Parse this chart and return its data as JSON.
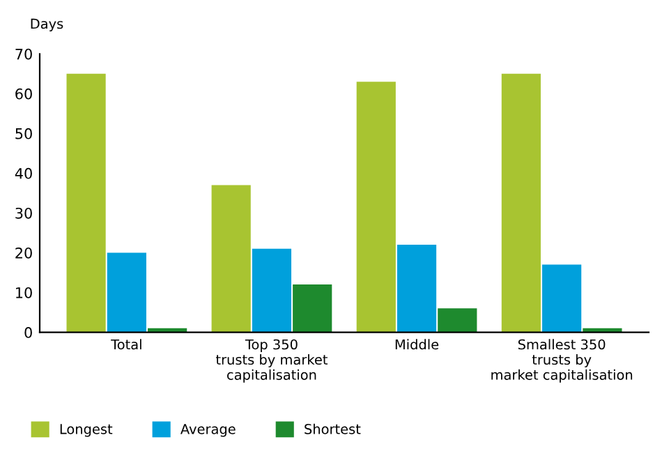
{
  "chart_data": {
    "type": "bar",
    "ylabel": "Days",
    "categories": [
      "Total",
      "Top 350\ntrusts by market\ncapitalisation",
      "Middle",
      "Smallest 350\ntrusts by\nmarket capitalisation"
    ],
    "series": [
      {
        "name": "Longest",
        "color": "#a8c431",
        "values": [
          65,
          37,
          63,
          65
        ]
      },
      {
        "name": "Average",
        "color": "#00a0dc",
        "values": [
          20,
          21,
          22,
          17
        ]
      },
      {
        "name": "Shortest",
        "color": "#1e8a2e",
        "values": [
          1,
          12,
          6,
          1
        ]
      }
    ],
    "ylim": [
      0,
      70
    ],
    "yticks": [
      0,
      10,
      20,
      30,
      40,
      50,
      60,
      70
    ],
    "grid": false,
    "legend": "bottom"
  }
}
